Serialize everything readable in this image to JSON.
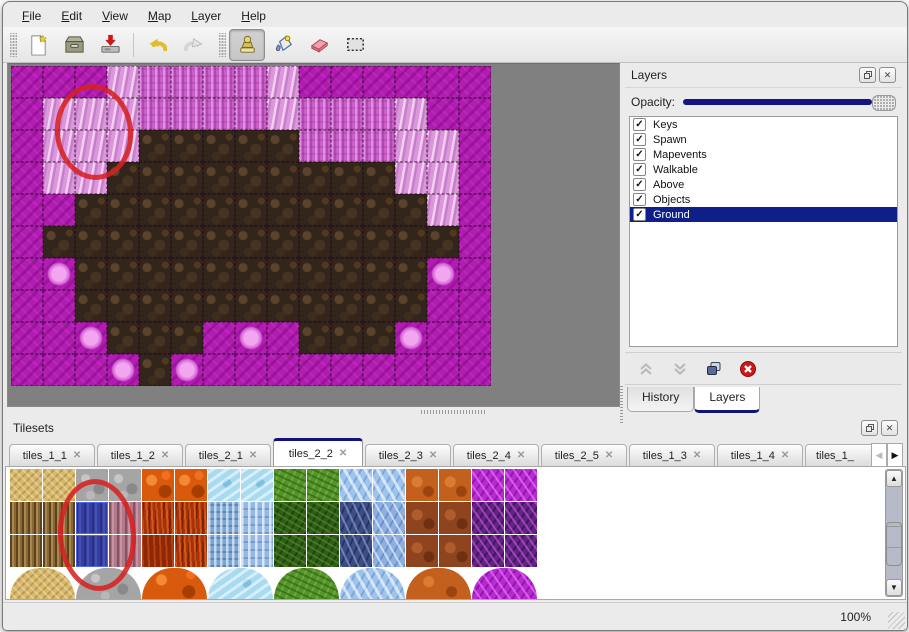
{
  "menu": {
    "items": [
      "File",
      "Edit",
      "View",
      "Map",
      "Layer",
      "Help"
    ]
  },
  "toolbar": {
    "icons": [
      "new-file",
      "open",
      "save",
      "undo",
      "redo",
      "stamp-tool",
      "fill-tool",
      "eraser-tool",
      "rect-select-tool"
    ],
    "active_tool": "stamp-tool"
  },
  "map_view": {
    "columns": 15,
    "rows": 10,
    "tile_size": 32,
    "legend": {
      "m": "magenta-scale",
      "k": "pink-knit",
      "l": "light-knit",
      "b": "brown-rock",
      "f": "pink-flower"
    },
    "tiles": [
      "mmmlkkkklmmmmmm",
      "mlllkkkklkkklmm",
      "mlllbbbbbkkkllm",
      "mllbbbbbbbbbllm",
      "mmbbbbbbbbbbblm",
      "mbbbbbbbbbbbbbm",
      "mfbbbbbbbbbbbfm",
      "mmbbbbbbbbbbbmm",
      "mmfbbbmfmbbbfmm",
      "mmmfbfmmmmmmmmm"
    ],
    "annotation_color": "#d62121"
  },
  "layers_panel": {
    "title": "Layers",
    "opacity_label": "Opacity:",
    "opacity_percent": 100,
    "layers": [
      {
        "label": "Keys",
        "checked": true,
        "selected": false
      },
      {
        "label": "Spawn",
        "checked": true,
        "selected": false
      },
      {
        "label": "Mapevents",
        "checked": true,
        "selected": false
      },
      {
        "label": "Walkable",
        "checked": true,
        "selected": false
      },
      {
        "label": "Above",
        "checked": true,
        "selected": false
      },
      {
        "label": "Objects",
        "checked": true,
        "selected": false
      },
      {
        "label": "Ground",
        "checked": true,
        "selected": true
      }
    ],
    "buttons": [
      "raise-layer",
      "lower-layer",
      "duplicate-layer",
      "delete-layer"
    ],
    "tabs": [
      {
        "label": "History",
        "active": false
      },
      {
        "label": "Layers",
        "active": true
      }
    ]
  },
  "tilesets_panel": {
    "title": "Tilesets",
    "tabs": [
      {
        "label": "tiles_1_1",
        "active": false,
        "truncated": false
      },
      {
        "label": "tiles_1_2",
        "active": false,
        "truncated": false
      },
      {
        "label": "tiles_2_1",
        "active": false,
        "truncated": false
      },
      {
        "label": "tiles_2_2",
        "active": true,
        "truncated": false
      },
      {
        "label": "tiles_2_3",
        "active": false,
        "truncated": false
      },
      {
        "label": "tiles_2_4",
        "active": false,
        "truncated": false
      },
      {
        "label": "tiles_2_5",
        "active": false,
        "truncated": false
      },
      {
        "label": "tiles_1_3",
        "active": false,
        "truncated": false
      },
      {
        "label": "tiles_1_4",
        "active": false,
        "truncated": false
      },
      {
        "label": "tiles_1_",
        "active": false,
        "truncated": true
      }
    ],
    "grid": {
      "tile_size": 32,
      "rows": [
        [
          "sand",
          "sand",
          "rock",
          "rock",
          "lava",
          "lava",
          "ice",
          "ice",
          "vine",
          "vine",
          "crystal",
          "crystal",
          "rust",
          "rust",
          "web",
          "web"
        ],
        [
          "fiber",
          "fiber",
          "navy",
          "mauve",
          "flame",
          "flame",
          "icicle",
          "icicle2",
          "dvine",
          "dvine",
          "dcrystal",
          "crystal2",
          "rust2",
          "rust2",
          "dweb",
          "dweb"
        ],
        [
          "fiber",
          "fiber",
          "navy",
          "mauve",
          "flame2",
          "flame",
          "icicle",
          "icicle2",
          "dvine",
          "dvine",
          "dcrystal",
          "crystal2",
          "rust2",
          "rust2",
          "dweb",
          "dweb"
        ]
      ],
      "blobs": [
        "sand",
        "rock",
        "lava",
        "ice",
        "vine",
        "crystal",
        "rust",
        "web"
      ],
      "selected_cells": [
        [
          2,
          1
        ],
        [
          2,
          2
        ]
      ]
    },
    "annotation_color": "#d62121"
  },
  "statusbar": {
    "zoom_level": "100%"
  },
  "colors": {
    "accent_navy": "#12127a",
    "selection_navy": "#0f1f8a",
    "annotation_red": "#d62121",
    "map_background": "#808080"
  }
}
